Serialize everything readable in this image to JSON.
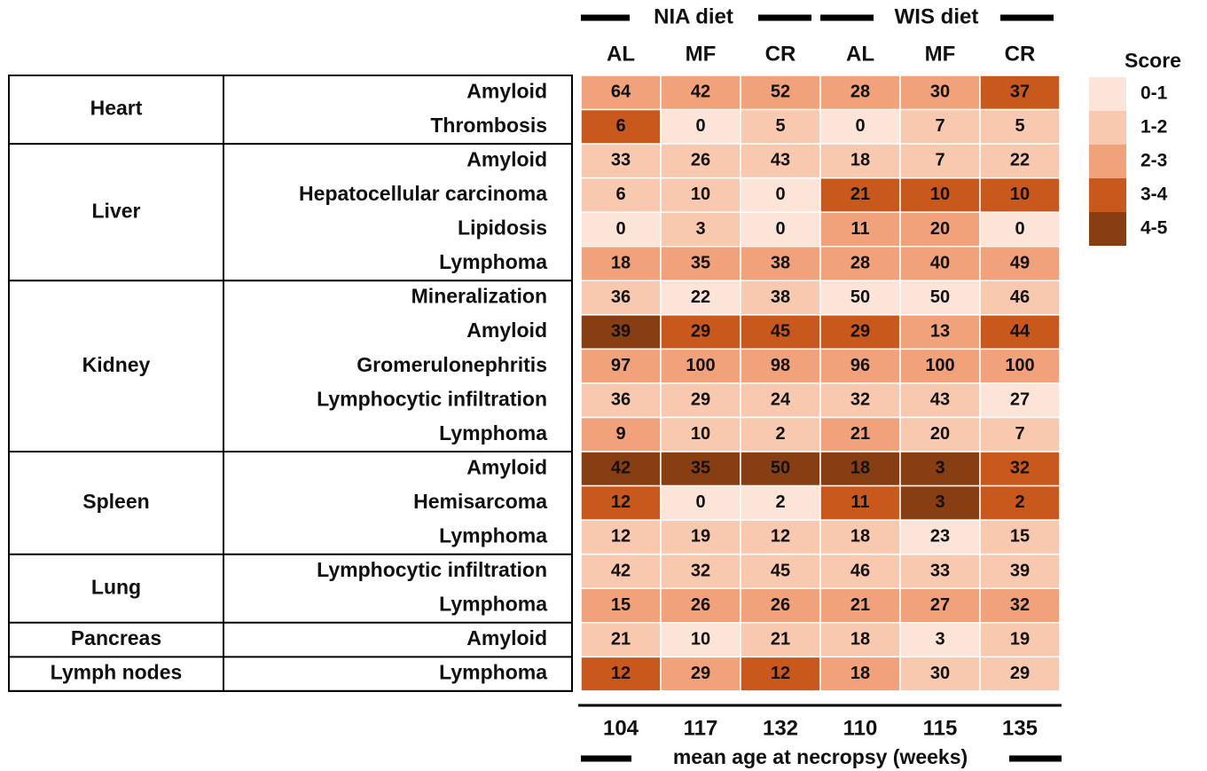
{
  "column_groups": [
    "NIA diet",
    "WIS diet"
  ],
  "columns": [
    "AL",
    "MF",
    "CR",
    "AL",
    "MF",
    "CR"
  ],
  "legend": {
    "title": "Score",
    "items": [
      {
        "label": "0-1",
        "color": "#fde4d8"
      },
      {
        "label": "1-2",
        "color": "#f8c9ae"
      },
      {
        "label": "2-3",
        "color": "#f1a27b"
      },
      {
        "label": "3-4",
        "color": "#c9581c"
      },
      {
        "label": "4-5",
        "color": "#883e13"
      }
    ]
  },
  "organs": [
    {
      "name": "Heart",
      "rows": [
        {
          "lesion": "Amyloid",
          "values": [
            64,
            42,
            52,
            28,
            30,
            37
          ],
          "scores": [
            "2-3",
            "2-3",
            "2-3",
            "2-3",
            "2-3",
            "3-4"
          ]
        },
        {
          "lesion": "Thrombosis",
          "values": [
            6,
            0,
            5,
            0,
            7,
            5
          ],
          "scores": [
            "3-4",
            "0-1",
            "1-2",
            "0-1",
            "1-2",
            "1-2"
          ]
        }
      ]
    },
    {
      "name": "Liver",
      "rows": [
        {
          "lesion": "Amyloid",
          "values": [
            33,
            26,
            43,
            18,
            7,
            22
          ],
          "scores": [
            "1-2",
            "1-2",
            "1-2",
            "1-2",
            "1-2",
            "1-2"
          ]
        },
        {
          "lesion": "Hepatocellular carcinoma",
          "values": [
            6,
            10,
            0,
            21,
            10,
            10
          ],
          "scores": [
            "1-2",
            "1-2",
            "0-1",
            "3-4",
            "3-4",
            "3-4"
          ]
        },
        {
          "lesion": "Lipidosis",
          "values": [
            0,
            3,
            0,
            11,
            20,
            0
          ],
          "scores": [
            "0-1",
            "1-2",
            "0-1",
            "2-3",
            "2-3",
            "0-1"
          ]
        },
        {
          "lesion": "Lymphoma",
          "values": [
            18,
            35,
            38,
            28,
            40,
            49
          ],
          "scores": [
            "2-3",
            "2-3",
            "2-3",
            "2-3",
            "2-3",
            "2-3"
          ]
        }
      ]
    },
    {
      "name": "Kidney",
      "rows": [
        {
          "lesion": "Mineralization",
          "values": [
            36,
            22,
            38,
            50,
            50,
            46
          ],
          "scores": [
            "1-2",
            "0-1",
            "1-2",
            "0-1",
            "0-1",
            "1-2"
          ]
        },
        {
          "lesion": "Amyloid",
          "values": [
            39,
            29,
            45,
            29,
            13,
            44
          ],
          "scores": [
            "4-5",
            "3-4",
            "3-4",
            "3-4",
            "2-3",
            "3-4"
          ]
        },
        {
          "lesion": "Gromerulonephritis",
          "values": [
            97,
            100,
            98,
            96,
            100,
            100
          ],
          "scores": [
            "2-3",
            "2-3",
            "2-3",
            "2-3",
            "2-3",
            "2-3"
          ]
        },
        {
          "lesion": "Lymphocytic infiltration",
          "values": [
            36,
            29,
            24,
            32,
            43,
            27
          ],
          "scores": [
            "1-2",
            "1-2",
            "1-2",
            "1-2",
            "1-2",
            "0-1"
          ]
        },
        {
          "lesion": "Lymphoma",
          "values": [
            9,
            10,
            2,
            21,
            20,
            7
          ],
          "scores": [
            "2-3",
            "1-2",
            "1-2",
            "2-3",
            "1-2",
            "1-2"
          ]
        }
      ]
    },
    {
      "name": "Spleen",
      "rows": [
        {
          "lesion": "Amyloid",
          "values": [
            42,
            35,
            50,
            18,
            3,
            32
          ],
          "scores": [
            "4-5",
            "4-5",
            "4-5",
            "4-5",
            "4-5",
            "3-4"
          ]
        },
        {
          "lesion": "Hemisarcoma",
          "values": [
            12,
            0,
            2,
            11,
            3,
            2
          ],
          "scores": [
            "3-4",
            "0-1",
            "0-1",
            "3-4",
            "4-5",
            "3-4"
          ]
        },
        {
          "lesion": "Lymphoma",
          "values": [
            12,
            19,
            12,
            18,
            23,
            15
          ],
          "scores": [
            "1-2",
            "1-2",
            "1-2",
            "1-2",
            "0-1",
            "1-2"
          ]
        }
      ]
    },
    {
      "name": "Lung",
      "rows": [
        {
          "lesion": "Lymphocytic infiltration",
          "values": [
            42,
            32,
            45,
            46,
            33,
            39
          ],
          "scores": [
            "1-2",
            "1-2",
            "1-2",
            "1-2",
            "1-2",
            "1-2"
          ]
        },
        {
          "lesion": "Lymphoma",
          "values": [
            15,
            26,
            26,
            21,
            27,
            32
          ],
          "scores": [
            "2-3",
            "2-3",
            "2-3",
            "2-3",
            "2-3",
            "2-3"
          ]
        }
      ]
    },
    {
      "name": "Pancreas",
      "rows": [
        {
          "lesion": "Amyloid",
          "values": [
            21,
            10,
            21,
            18,
            3,
            19
          ],
          "scores": [
            "1-2",
            "0-1",
            "1-2",
            "1-2",
            "0-1",
            "1-2"
          ]
        }
      ]
    },
    {
      "name": "Lymph nodes",
      "rows": [
        {
          "lesion": "Lymphoma",
          "values": [
            12,
            29,
            12,
            18,
            30,
            29
          ],
          "scores": [
            "3-4",
            "2-3",
            "3-4",
            "2-3",
            "1-2",
            "1-2"
          ]
        }
      ]
    }
  ],
  "mean_age": {
    "label": "mean age at necropsy (weeks)",
    "values": [
      104,
      117,
      132,
      110,
      115,
      135
    ]
  }
}
